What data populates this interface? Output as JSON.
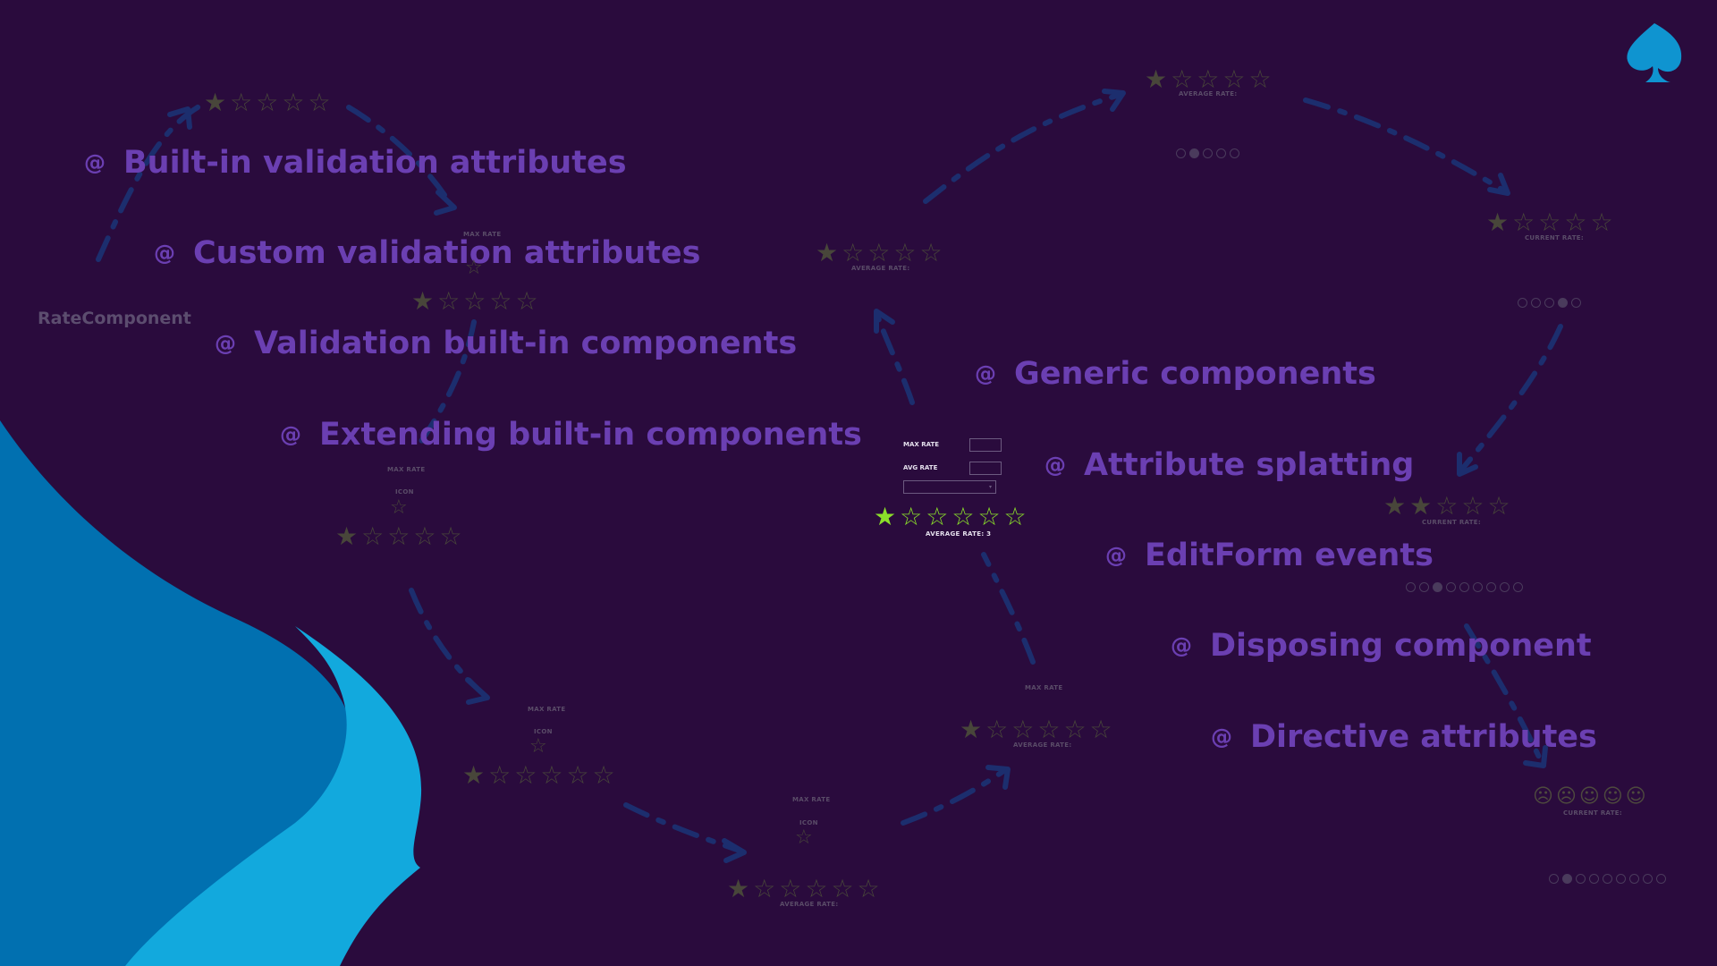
{
  "topics": [
    "Built-in validation attributes",
    "Custom validation attributes",
    "Validation built-in components",
    "Extending built-in components",
    "Generic components",
    "Attribute splatting",
    "EditForm events",
    "Disposing component",
    "Directive attributes"
  ],
  "topic_bullet_icon": "at-sign-icon",
  "side_label": "RateComponent",
  "demo": {
    "max_rate_label": "MAX RATE",
    "avg_rate_label": "AVG RATE",
    "average_rate_caption": "AVERAGE RATE: 3"
  },
  "ghost_labels": {
    "average_rate": "AVERAGE RATE:",
    "current_rate": "CURRENT RATE:",
    "max_rate": "MAX RATE",
    "icon": "ICON"
  },
  "colors": {
    "background": "#2a0b3d",
    "topic_text": "#6b3fb2",
    "dim_star": "#48463a",
    "active_star": "#8be02a",
    "curve_dashes": "#1c2e6e",
    "blob_dark": "#0170b0",
    "blob_light": "#12a9dd",
    "logo": "#0f94d0"
  }
}
